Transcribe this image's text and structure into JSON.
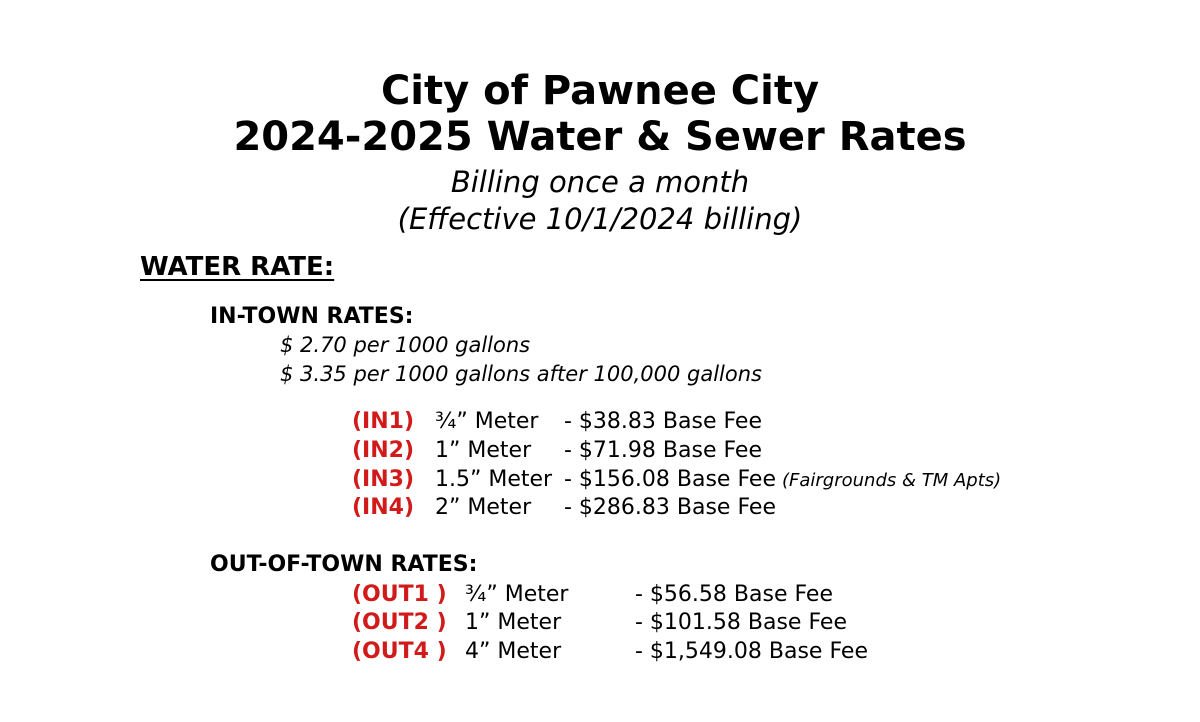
{
  "header": {
    "title_line1": "City of Pawnee City",
    "title_line2": "2024-2025 Water & Sewer Rates",
    "subtitle_line1": "Billing once a month",
    "subtitle_line2": "(Effective 10/1/2024 billing)"
  },
  "water_rate": {
    "heading": "WATER RATE:",
    "in_town": {
      "heading": "IN-TOWN RATES:",
      "rate_lines": [
        "$ 2.70 per 1000 gallons",
        "$ 3.35 per 1000 gallons after 100,000 gallons"
      ],
      "fees": [
        {
          "code": "(IN1)",
          "meter": "¾” Meter",
          "fee": "- $38.83 Base Fee",
          "note": ""
        },
        {
          "code": "(IN2)",
          "meter": "1” Meter",
          "fee": "- $71.98 Base Fee",
          "note": ""
        },
        {
          "code": "(IN3)",
          "meter": "1.5” Meter",
          "fee": "- $156.08 Base Fee",
          "note": "(Fairgrounds & TM Apts)"
        },
        {
          "code": "(IN4)",
          "meter": "2” Meter",
          "fee": "- $286.83 Base Fee",
          "note": ""
        }
      ]
    },
    "out_of_town": {
      "heading": "OUT-OF-TOWN RATES:",
      "fees": [
        {
          "code": "(OUT1 )",
          "meter": "¾” Meter",
          "fee": "- $56.58 Base Fee"
        },
        {
          "code": "(OUT2 )",
          "meter": "1” Meter",
          "fee": "- $101.58 Base Fee"
        },
        {
          "code": "(OUT4 )",
          "meter": "4” Meter",
          "fee": "- $1,549.08 Base Fee"
        }
      ]
    }
  },
  "colors": {
    "code_red": "#d11a1a",
    "text": "#000000",
    "background": "#ffffff"
  }
}
